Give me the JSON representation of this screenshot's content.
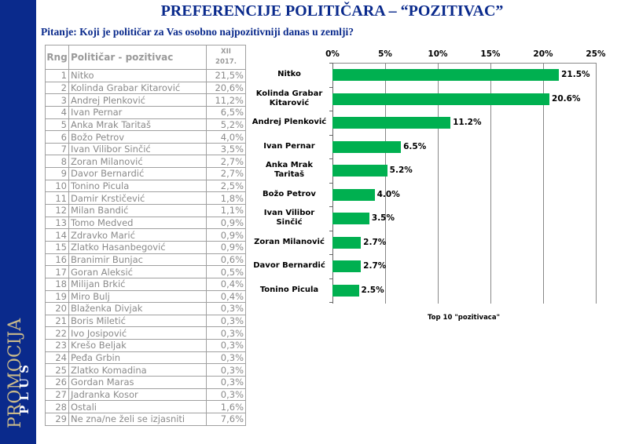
{
  "title": "PREFERENCIJE POLITIČARA – “POZITIVAC”",
  "question": "Pitanje: Koji je političar za Vas osobno najpozitivniji danas u zemlji?",
  "brand": {
    "main": "PROMOCIJA",
    "sub": "PLUS"
  },
  "colors": {
    "sidebar": "#0a2a8c",
    "title": "#0a2a8c",
    "bar": "#00b050"
  },
  "table": {
    "headers": {
      "rank": "Rng",
      "politician": "Političar - pozitivac",
      "period_line1": "XII",
      "period_line2": "2017."
    },
    "rows": [
      {
        "rank": "1",
        "name": "Nitko",
        "value": "21,5%"
      },
      {
        "rank": "2",
        "name": "Kolinda Grabar Kitarović",
        "value": "20,6%"
      },
      {
        "rank": "3",
        "name": "Andrej Plenković",
        "value": "11,2%"
      },
      {
        "rank": "4",
        "name": "Ivan Pernar",
        "value": "6,5%"
      },
      {
        "rank": "5",
        "name": "Anka Mrak Taritaš",
        "value": "5,2%"
      },
      {
        "rank": "6",
        "name": "Božo Petrov",
        "value": "4,0%"
      },
      {
        "rank": "7",
        "name": "Ivan Vilibor Sinčić",
        "value": "3,5%"
      },
      {
        "rank": "8",
        "name": "Zoran Milanović",
        "value": "2,7%"
      },
      {
        "rank": "9",
        "name": "Davor Bernardić",
        "value": "2,7%"
      },
      {
        "rank": "10",
        "name": "Tonino Picula",
        "value": "2,5%"
      },
      {
        "rank": "11",
        "name": "Damir Krstičević",
        "value": "1,8%"
      },
      {
        "rank": "12",
        "name": "Milan Bandić",
        "value": "1,1%"
      },
      {
        "rank": "13",
        "name": "Tomo Medved",
        "value": "0,9%"
      },
      {
        "rank": "14",
        "name": "Zdravko Marić",
        "value": "0,9%"
      },
      {
        "rank": "15",
        "name": "Zlatko Hasanbegović",
        "value": "0,9%"
      },
      {
        "rank": "16",
        "name": "Branimir Bunjac",
        "value": "0,6%"
      },
      {
        "rank": "17",
        "name": "Goran Aleksić",
        "value": "0,5%"
      },
      {
        "rank": "18",
        "name": "Milijan Brkić",
        "value": "0,4%"
      },
      {
        "rank": "19",
        "name": "Miro Bulj",
        "value": "0,4%"
      },
      {
        "rank": "20",
        "name": "Blaženka Divjak",
        "value": "0,3%"
      },
      {
        "rank": "21",
        "name": "Boris Miletić",
        "value": "0,3%"
      },
      {
        "rank": "22",
        "name": "Ivo Josipović",
        "value": "0,3%"
      },
      {
        "rank": "23",
        "name": "Krešo Beljak",
        "value": "0,3%"
      },
      {
        "rank": "24",
        "name": "Peđa Grbin",
        "value": "0,3%"
      },
      {
        "rank": "25",
        "name": "Zlatko Komadina",
        "value": "0,3%"
      },
      {
        "rank": "26",
        "name": "Gordan Maras",
        "value": "0,3%"
      },
      {
        "rank": "27",
        "name": "Jadranka Kosor",
        "value": "0,3%"
      },
      {
        "rank": "28",
        "name": "Ostali",
        "value": "1,6%"
      },
      {
        "rank": "29",
        "name": "Ne zna/ne želi se izjasniti",
        "value": "7,6%"
      }
    ]
  },
  "chart_data": {
    "type": "bar",
    "orientation": "horizontal",
    "title": "",
    "caption": "Top 10 \"pozitivaca\"",
    "categories": [
      "Nitko",
      "Kolinda Grabar Kitarović",
      "Andrej Plenković",
      "Ivan Pernar",
      "Anka Mrak Taritaš",
      "Božo Petrov",
      "Ivan Vilibor Sinčić",
      "Zoran Milanović",
      "Davor Bernardić",
      "Tonino Picula"
    ],
    "category_lines": [
      [
        "Nitko"
      ],
      [
        "Kolinda Grabar",
        "Kitarović"
      ],
      [
        "Andrej Plenković"
      ],
      [
        "Ivan Pernar"
      ],
      [
        "Anka Mrak",
        "Taritaš"
      ],
      [
        "Božo Petrov"
      ],
      [
        "Ivan Vilibor",
        "Sinčić"
      ],
      [
        "Zoran Milanović"
      ],
      [
        "Davor Bernardić"
      ],
      [
        "Tonino Picula"
      ]
    ],
    "values": [
      21.5,
      20.6,
      11.2,
      6.5,
      5.2,
      4.0,
      3.5,
      2.7,
      2.7,
      2.5
    ],
    "value_labels": [
      "21.5%",
      "20.6%",
      "11.2%",
      "6.5%",
      "5.2%",
      "4.0%",
      "3.5%",
      "2.7%",
      "2.7%",
      "2.5%"
    ],
    "xlabel": "",
    "ylabel": "",
    "xlim": [
      0,
      25
    ],
    "x_ticks": [
      "0%",
      "5%",
      "10%",
      "15%",
      "20%",
      "25%"
    ],
    "x_axis_position": "top",
    "grid": true,
    "legend": null,
    "bar_color": "#00b050"
  }
}
